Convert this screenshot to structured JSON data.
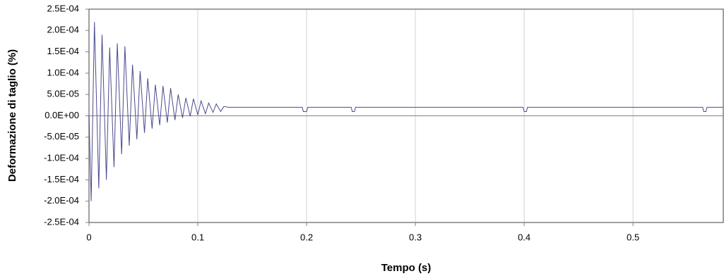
{
  "chart_data": {
    "type": "line",
    "x_label": "Tempo (s)",
    "y_label": "Deformazione di taglio (%)",
    "xlim": [
      0,
      0.583
    ],
    "xticks": [
      0,
      0.1,
      0.2,
      0.3,
      0.4,
      0.5
    ],
    "ylim": [
      -0.00025,
      0.00025
    ],
    "yticks": [
      {
        "value": 0.00025,
        "label": "2.5E-04"
      },
      {
        "value": 0.0002,
        "label": "2.0E-04"
      },
      {
        "value": 0.00015,
        "label": "1.5E-04"
      },
      {
        "value": 0.0001,
        "label": "1.0E-04"
      },
      {
        "value": 5e-05,
        "label": "5.0E-05"
      },
      {
        "value": 0,
        "label": "0.0E+00"
      },
      {
        "value": -5e-05,
        "label": "-5.0E-05"
      },
      {
        "value": -0.0001,
        "label": "-1.0E-04"
      },
      {
        "value": -0.00015,
        "label": "-1.5E-04"
      },
      {
        "value": -0.0002,
        "label": "-2.0E-04"
      },
      {
        "value": -0.00025,
        "label": "-2.5E-04"
      }
    ],
    "grid": true,
    "series": [
      {
        "color": "#4b4b8f",
        "x": [
          0,
          0.002,
          0.005,
          0.009,
          0.012,
          0.016,
          0.019,
          0.023,
          0.026,
          0.03,
          0.033,
          0.037,
          0.04,
          0.044,
          0.047,
          0.051,
          0.054,
          0.058,
          0.061,
          0.065,
          0.068,
          0.072,
          0.075,
          0.079,
          0.082,
          0.086,
          0.089,
          0.093,
          0.096,
          0.1,
          0.103,
          0.107,
          0.11,
          0.114,
          0.117,
          0.121,
          0.124,
          0.128,
          0.196,
          0.197,
          0.2,
          0.201,
          0.241,
          0.242,
          0.244,
          0.245,
          0.399,
          0.4,
          0.402,
          0.403,
          0.564,
          0.565,
          0.567,
          0.568,
          0.583
        ],
        "values": [
          0,
          -0.0002,
          0.00022,
          -0.00017,
          0.00019,
          -0.00015,
          0.00016,
          -0.00012,
          0.00017,
          -9e-05,
          0.000163,
          -7e-05,
          0.00012,
          -5.5e-05,
          0.000105,
          -4e-05,
          8.8e-05,
          -3e-05,
          7.3e-05,
          -2.2e-05,
          7e-05,
          -1.6e-05,
          6.5e-05,
          -1e-05,
          5e-05,
          -5e-06,
          4.2e-05,
          -1e-06,
          4e-05,
          2e-06,
          3.5e-05,
          5e-06,
          3e-05,
          8e-06,
          2.8e-05,
          1e-05,
          2.2e-05,
          2e-05,
          2e-05,
          1e-05,
          1e-05,
          2e-05,
          2e-05,
          1e-05,
          1e-05,
          2e-05,
          2e-05,
          1e-05,
          1e-05,
          2e-05,
          2e-05,
          1e-05,
          1e-05,
          2e-05,
          2e-05
        ]
      }
    ]
  }
}
